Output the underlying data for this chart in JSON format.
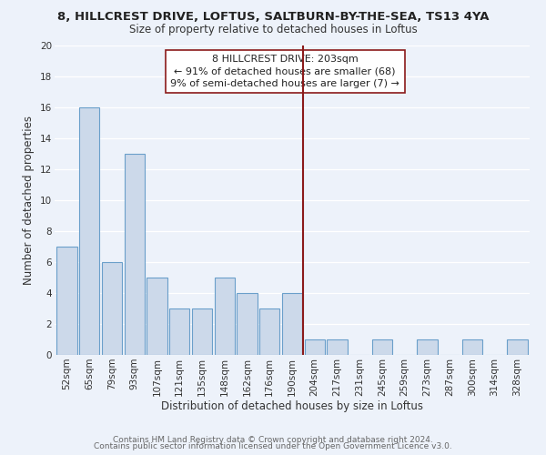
{
  "title": "8, HILLCREST DRIVE, LOFTUS, SALTBURN-BY-THE-SEA, TS13 4YA",
  "subtitle": "Size of property relative to detached houses in Loftus",
  "xlabel": "Distribution of detached houses by size in Loftus",
  "ylabel": "Number of detached properties",
  "bin_labels": [
    "52sqm",
    "65sqm",
    "79sqm",
    "93sqm",
    "107sqm",
    "121sqm",
    "135sqm",
    "148sqm",
    "162sqm",
    "176sqm",
    "190sqm",
    "204sqm",
    "217sqm",
    "231sqm",
    "245sqm",
    "259sqm",
    "273sqm",
    "287sqm",
    "300sqm",
    "314sqm",
    "328sqm"
  ],
  "values": [
    7,
    16,
    6,
    13,
    5,
    3,
    3,
    5,
    4,
    3,
    4,
    1,
    1,
    0,
    1,
    0,
    1,
    0,
    1,
    0,
    1
  ],
  "bar_color": "#ccd9ea",
  "bar_edge_color": "#6a9fca",
  "highlight_line_color": "#8b1a1a",
  "ylim": [
    0,
    20
  ],
  "yticks": [
    0,
    2,
    4,
    6,
    8,
    10,
    12,
    14,
    16,
    18,
    20
  ],
  "annotation_title": "8 HILLCREST DRIVE: 203sqm",
  "annotation_line1": "← 91% of detached houses are smaller (68)",
  "annotation_line2": "9% of semi-detached houses are larger (7) →",
  "footer_line1": "Contains HM Land Registry data © Crown copyright and database right 2024.",
  "footer_line2": "Contains public sector information licensed under the Open Government Licence v3.0.",
  "background_color": "#edf2fa",
  "grid_color": "#ffffff",
  "title_fontsize": 9.5,
  "subtitle_fontsize": 8.5,
  "axis_label_fontsize": 8.5,
  "tick_fontsize": 7.5,
  "annotation_fontsize": 8,
  "footer_fontsize": 6.5
}
